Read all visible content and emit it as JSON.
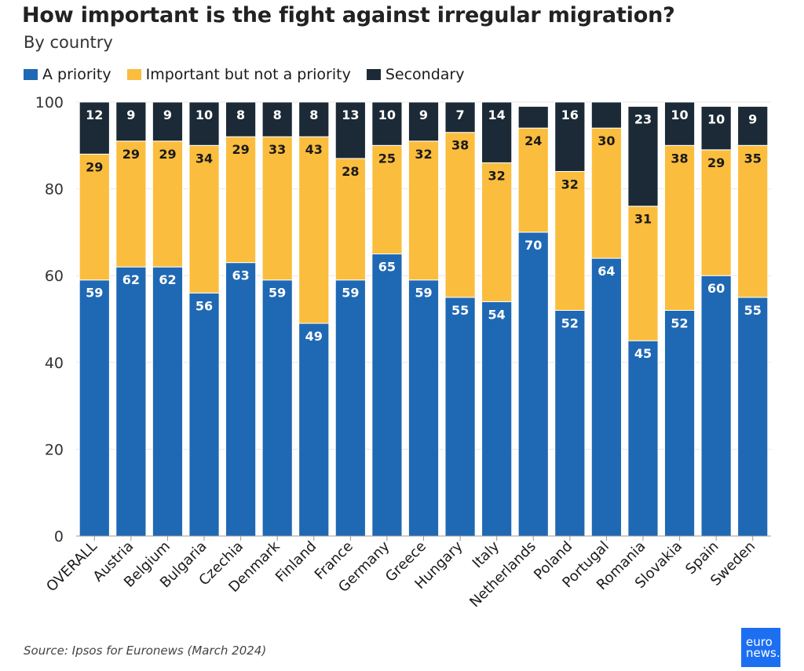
{
  "title": "How important is the fight against irregular migration?",
  "subtitle": "By country",
  "source": "Source: Ipsos for Euronews (March 2024)",
  "logo": {
    "line1": "euro",
    "line2": "news."
  },
  "colors": {
    "priority": "#1f68b4",
    "important": "#fbbd3d",
    "secondary": "#1b2a36",
    "grid": "#e6e6e6"
  },
  "chart_data": {
    "type": "bar",
    "stacked": true,
    "ylim": [
      0,
      100
    ],
    "yticks": [
      0,
      20,
      40,
      60,
      80,
      100
    ],
    "grid": true,
    "legend_position": "top-left",
    "categories": [
      "OVERALL",
      "Austria",
      "Belgium",
      "Bulgaria",
      "Czechia",
      "Denmark",
      "Finland",
      "France",
      "Germany",
      "Greece",
      "Hungary",
      "Italy",
      "Netherlands",
      "Poland",
      "Portugal",
      "Romania",
      "Slovakia",
      "Spain",
      "Sweden"
    ],
    "series": [
      {
        "name": "A priority",
        "key": "priority",
        "values": [
          59,
          62,
          62,
          56,
          63,
          59,
          49,
          59,
          65,
          59,
          55,
          54,
          70,
          52,
          64,
          45,
          52,
          60,
          55
        ],
        "labels": [
          "59",
          "62",
          "62",
          "56",
          "63",
          "59",
          "49",
          "59",
          "65",
          "59",
          "55",
          "54",
          "70",
          "52",
          "64",
          "45",
          "52",
          "60",
          "55"
        ]
      },
      {
        "name": "Important but not a priority",
        "key": "important",
        "values": [
          29,
          29,
          29,
          34,
          29,
          33,
          43,
          28,
          25,
          32,
          38,
          32,
          24,
          32,
          30,
          31,
          38,
          29,
          35
        ],
        "labels": [
          "29",
          "29",
          "29",
          "34",
          "29",
          "33",
          "43",
          "28",
          "25",
          "32",
          "38",
          "32",
          "24",
          "32",
          "30",
          "31",
          "38",
          "29",
          "35"
        ]
      },
      {
        "name": "Secondary",
        "key": "secondary",
        "values": [
          12,
          9,
          9,
          10,
          8,
          8,
          8,
          13,
          10,
          9,
          7,
          14,
          5,
          16,
          6,
          23,
          10,
          10,
          9
        ],
        "labels": [
          "12",
          "9",
          "9",
          "10",
          "8",
          "8",
          "8",
          "13",
          "10",
          "9",
          "7",
          "14",
          "",
          "16",
          "",
          "23",
          "10",
          "10",
          "9"
        ]
      }
    ]
  }
}
